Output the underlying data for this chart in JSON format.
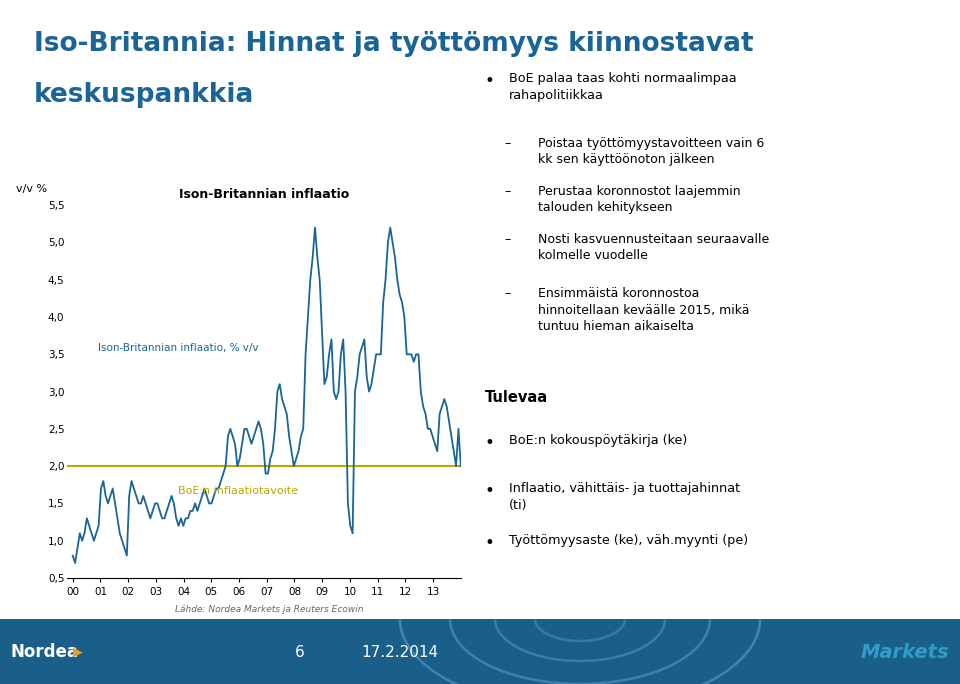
{
  "title_line1": "Iso-Britannia: Hinnat ja työttömyys kiinnostavat",
  "title_line2": "keskuspankkia",
  "title_color": "#1A6496",
  "chart_title": "Ison-Britannian inflaatio",
  "ylabel_text": "v/v %",
  "line_label": "Ison-Britannian inflaatio, % v/v",
  "line_color": "#1A6496",
  "target_label": "BoE:n inflaatiotavoite",
  "target_color": "#B8A800",
  "target_value": 2.0,
  "ylim_min": 0.5,
  "ylim_max": 5.5,
  "yticks": [
    0.5,
    1.0,
    1.5,
    2.0,
    2.5,
    3.0,
    3.5,
    4.0,
    4.5,
    5.0,
    5.5
  ],
  "ytick_labels": [
    "0,5",
    "1,0",
    "1,5",
    "2,0",
    "2,5",
    "3,0",
    "3,5",
    "4,0",
    "4,5",
    "5,0",
    "5,5"
  ],
  "xtick_labels": [
    "00",
    "01",
    "02",
    "03",
    "04",
    "05",
    "06",
    "07",
    "08",
    "09",
    "10",
    "11",
    "12",
    "13"
  ],
  "source_text": "Lähde: Nordea Markets ja Reuters Ecowin",
  "background_color": "#FFFFFF",
  "bullet1_text": "BoE palaa taas kohti normaalimpaa\nrahapolitiikkaa",
  "sub_bullets": [
    "Poistaa työttömyystavoitteen vain 6\nkk sen käyttöönoton jälkeen",
    "Perustaa koronnostot laajemmin\ntalouden kehitykseen",
    "Nosti kasvuennusteitaan seuraavalle\nkolmelle vuodelle",
    "Ensimmäistä koronnostoa\nhinnoitellaan keväälle 2015, mikä\ntuntuu hieman aikaiselta"
  ],
  "tulevaa_title": "Tulevaa",
  "tulevaa_bullets": [
    "BoE:n kokouspöytäkirja (ke)",
    "Inflaatio, vähittäis- ja tuottajahinnat\n(ti)",
    "Työttömyysaste (ke), väh.myynti (pe)"
  ],
  "footer_page": "6",
  "footer_date": "17.2.2014",
  "footer_bg": "#1A5E8A",
  "footer_wave_color": "#3A89C0",
  "markets_color": "#2E9EC8",
  "inflation_data": [
    0.8,
    0.7,
    0.9,
    1.1,
    1.0,
    1.1,
    1.3,
    1.2,
    1.1,
    1.0,
    1.1,
    1.2,
    1.7,
    1.8,
    1.6,
    1.5,
    1.6,
    1.7,
    1.5,
    1.3,
    1.1,
    1.0,
    0.9,
    0.8,
    1.6,
    1.8,
    1.7,
    1.6,
    1.5,
    1.5,
    1.6,
    1.5,
    1.4,
    1.3,
    1.4,
    1.5,
    1.5,
    1.4,
    1.3,
    1.3,
    1.4,
    1.5,
    1.6,
    1.5,
    1.3,
    1.2,
    1.3,
    1.2,
    1.3,
    1.3,
    1.4,
    1.4,
    1.5,
    1.4,
    1.5,
    1.6,
    1.7,
    1.6,
    1.5,
    1.5,
    1.6,
    1.7,
    1.7,
    1.8,
    1.9,
    2.0,
    2.4,
    2.5,
    2.4,
    2.3,
    2.0,
    2.1,
    2.3,
    2.5,
    2.5,
    2.4,
    2.3,
    2.4,
    2.5,
    2.6,
    2.5,
    2.3,
    1.9,
    1.9,
    2.1,
    2.2,
    2.5,
    3.0,
    3.1,
    2.9,
    2.8,
    2.7,
    2.4,
    2.2,
    2.0,
    2.1,
    2.2,
    2.4,
    2.5,
    3.5,
    4.0,
    4.5,
    4.8,
    5.2,
    4.8,
    4.5,
    3.8,
    3.1,
    3.2,
    3.5,
    3.7,
    3.0,
    2.9,
    3.0,
    3.5,
    3.7,
    3.0,
    1.5,
    1.2,
    1.1,
    3.0,
    3.2,
    3.5,
    3.6,
    3.7,
    3.2,
    3.0,
    3.1,
    3.3,
    3.5,
    3.5,
    3.5,
    4.2,
    4.5,
    5.0,
    5.2,
    5.0,
    4.8,
    4.5,
    4.3,
    4.2,
    4.0,
    3.5,
    3.5,
    3.5,
    3.4,
    3.5,
    3.5,
    3.0,
    2.8,
    2.7,
    2.5,
    2.5,
    2.4,
    2.3,
    2.2,
    2.7,
    2.8,
    2.9,
    2.8,
    2.6,
    2.4,
    2.2,
    2.0,
    2.5,
    2.0
  ]
}
